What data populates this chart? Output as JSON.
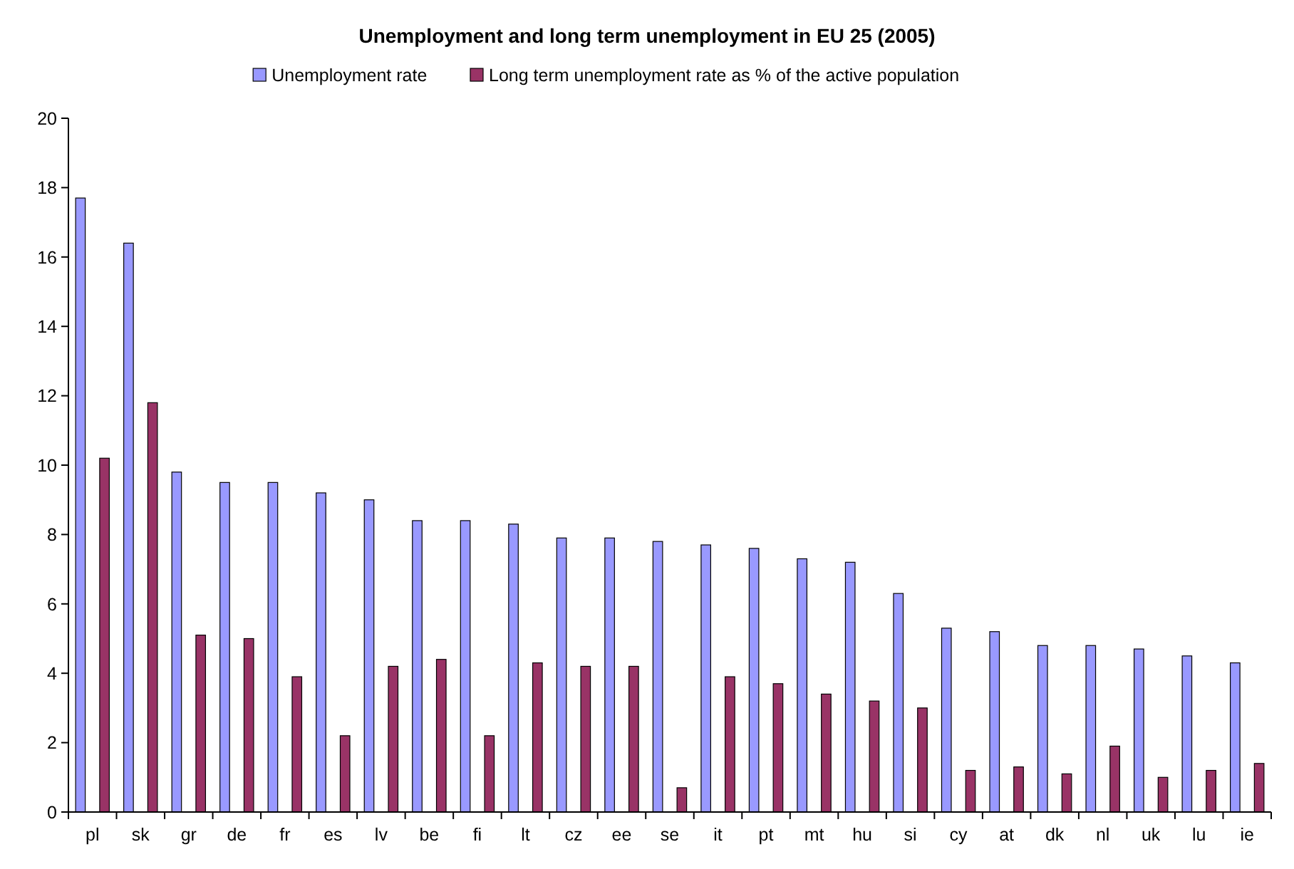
{
  "chart_data": {
    "type": "bar",
    "title": "Unemployment and long term unemployment in EU 25 (2005)",
    "categories": [
      "pl",
      "sk",
      "gr",
      "de",
      "fr",
      "es",
      "lv",
      "be",
      "fi",
      "lt",
      "cz",
      "ee",
      "se",
      "it",
      "pt",
      "mt",
      "hu",
      "si",
      "cy",
      "at",
      "dk",
      "nl",
      "uk",
      "lu",
      "ie"
    ],
    "series": [
      {
        "name": "Unemployment rate",
        "color": "#9999ff",
        "values": [
          17.7,
          16.4,
          9.8,
          9.5,
          9.5,
          9.2,
          9.0,
          8.4,
          8.4,
          8.3,
          7.9,
          7.9,
          7.8,
          7.7,
          7.6,
          7.3,
          7.2,
          6.3,
          5.3,
          5.2,
          4.8,
          4.8,
          4.7,
          4.5,
          4.3
        ]
      },
      {
        "name": "Long term unemployment rate as % of the active population",
        "color": "#993366",
        "values": [
          10.2,
          11.8,
          5.1,
          5.0,
          3.9,
          2.2,
          4.2,
          4.4,
          2.2,
          4.3,
          4.2,
          4.2,
          0.7,
          3.9,
          3.7,
          3.4,
          3.2,
          3.0,
          1.2,
          1.3,
          1.1,
          1.9,
          1.0,
          1.2,
          1.4
        ]
      }
    ],
    "ylim": [
      0,
      20
    ],
    "yticks": [
      0,
      2,
      4,
      6,
      8,
      10,
      12,
      14,
      16,
      18,
      20
    ],
    "grid": false,
    "legend": "top"
  }
}
